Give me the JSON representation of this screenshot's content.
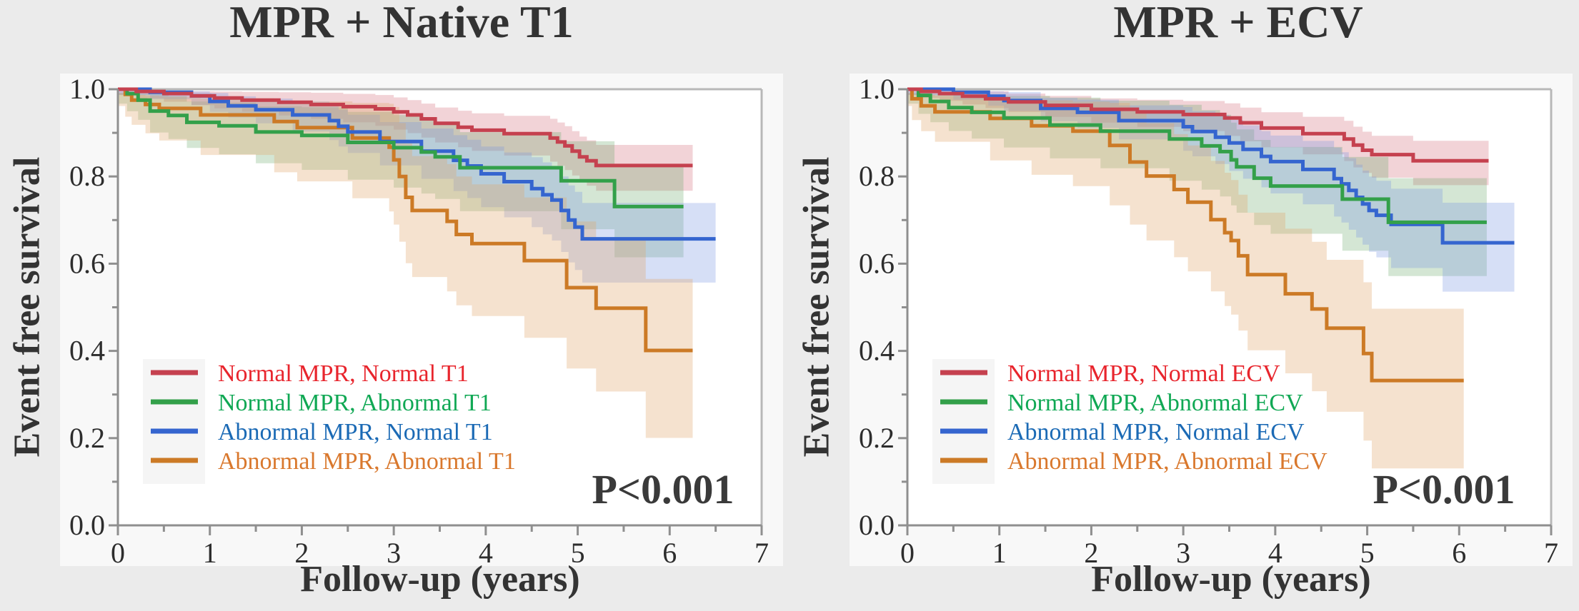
{
  "page": {
    "background": "#ebebeb",
    "figure_background": "#f8f8f8",
    "plot_background": "#ffffff"
  },
  "chart_data": [
    {
      "type": "line",
      "subtype": "kaplan-meier-step",
      "title": "MPR + Native T1",
      "xlabel": "Follow-up (years)",
      "ylabel": "Event free survival",
      "p_value": "P<0.001",
      "xlim": [
        0,
        7
      ],
      "ylim": [
        0.0,
        1.0
      ],
      "xticks": [
        0,
        1,
        2,
        3,
        4,
        5,
        6,
        7
      ],
      "ytick_labels": [
        "0.0",
        "0.2",
        "0.4",
        "0.6",
        "0.8",
        "1.0"
      ],
      "ytick_values": [
        0.0,
        0.2,
        0.4,
        0.6,
        0.8,
        1.0
      ],
      "grid": false,
      "legend_position": "lower left",
      "series": [
        {
          "name": "Normal MPR, Normal T1",
          "line_color": "#c5414f",
          "label_color": "#e8252d",
          "band_color": "rgba(205,80,95,0.25)",
          "band_halfwidth_start": 0.012,
          "band_halfwidth_end": 0.06,
          "band_growth_exponent": 0.9,
          "end_time": 6.25,
          "steps": [
            [
              0,
              1.0
            ],
            [
              0.2,
              0.995
            ],
            [
              0.5,
              0.99
            ],
            [
              0.8,
              0.985
            ],
            [
              1.05,
              0.98
            ],
            [
              1.35,
              0.975
            ],
            [
              1.75,
              0.97
            ],
            [
              2.1,
              0.965
            ],
            [
              2.45,
              0.96
            ],
            [
              2.8,
              0.955
            ],
            [
              3.0,
              0.948
            ],
            [
              3.15,
              0.941
            ],
            [
              3.3,
              0.932
            ],
            [
              3.45,
              0.922
            ],
            [
              3.7,
              0.913
            ],
            [
              3.85,
              0.906
            ],
            [
              4.2,
              0.898
            ],
            [
              4.7,
              0.888
            ],
            [
              4.78,
              0.879
            ],
            [
              4.86,
              0.87
            ],
            [
              4.94,
              0.858
            ],
            [
              5.02,
              0.845
            ],
            [
              5.1,
              0.836
            ],
            [
              5.2,
              0.825
            ]
          ]
        },
        {
          "name": "Normal MPR, Abnormal T1",
          "line_color": "#33a04a",
          "label_color": "#10a854",
          "band_color": "rgba(100,165,100,0.28)",
          "band_halfwidth_start": 0.03,
          "band_halfwidth_end": 0.112,
          "band_growth_exponent": 0.6,
          "end_time": 6.15,
          "steps": [
            [
              0,
              1.0
            ],
            [
              0.1,
              0.99
            ],
            [
              0.22,
              0.975
            ],
            [
              0.35,
              0.95
            ],
            [
              0.55,
              0.94
            ],
            [
              0.75,
              0.924
            ],
            [
              1.1,
              0.916
            ],
            [
              1.5,
              0.902
            ],
            [
              2.0,
              0.894
            ],
            [
              2.5,
              0.878
            ],
            [
              3.0,
              0.866
            ],
            [
              3.3,
              0.856
            ],
            [
              3.45,
              0.845
            ],
            [
              3.72,
              0.82
            ],
            [
              4.82,
              0.79
            ],
            [
              5.4,
              0.731
            ]
          ]
        },
        {
          "name": "Abnormal MPR, Normal T1",
          "line_color": "#3565cf",
          "label_color": "#1b6ab5",
          "band_color": "rgba(120,150,225,0.30)",
          "band_halfwidth_start": 0.012,
          "band_halfwidth_end": 0.122,
          "band_growth_exponent": 1.3,
          "end_time": 6.5,
          "steps": [
            [
              0,
              1.0
            ],
            [
              0.35,
              0.993
            ],
            [
              0.8,
              0.985
            ],
            [
              1.0,
              0.972
            ],
            [
              1.2,
              0.962
            ],
            [
              1.5,
              0.953
            ],
            [
              1.9,
              0.941
            ],
            [
              2.3,
              0.928
            ],
            [
              2.4,
              0.915
            ],
            [
              2.5,
              0.902
            ],
            [
              2.85,
              0.88
            ],
            [
              3.3,
              0.858
            ],
            [
              3.65,
              0.837
            ],
            [
              3.8,
              0.824
            ],
            [
              3.95,
              0.806
            ],
            [
              4.2,
              0.788
            ],
            [
              4.5,
              0.772
            ],
            [
              4.62,
              0.758
            ],
            [
              4.72,
              0.746
            ],
            [
              4.82,
              0.722
            ],
            [
              4.9,
              0.7
            ],
            [
              4.97,
              0.684
            ],
            [
              5.05,
              0.657
            ]
          ]
        },
        {
          "name": "Abnormal MPR, Abnormal T1",
          "line_color": "#cc7a26",
          "label_color": "#d9782d",
          "band_color": "rgba(225,165,105,0.32)",
          "band_halfwidth_start": 0.035,
          "band_halfwidth_end": 0.19,
          "band_growth_exponent": 0.6,
          "end_time": 6.25,
          "steps": [
            [
              0,
              1.0
            ],
            [
              0.08,
              0.988
            ],
            [
              0.15,
              0.975
            ],
            [
              0.3,
              0.965
            ],
            [
              0.45,
              0.956
            ],
            [
              0.9,
              0.941
            ],
            [
              1.7,
              0.926
            ],
            [
              1.95,
              0.912
            ],
            [
              2.55,
              0.888
            ],
            [
              2.95,
              0.867
            ],
            [
              3.0,
              0.838
            ],
            [
              3.06,
              0.8
            ],
            [
              3.13,
              0.752
            ],
            [
              3.2,
              0.722
            ],
            [
              3.58,
              0.697
            ],
            [
              3.68,
              0.667
            ],
            [
              3.85,
              0.646
            ],
            [
              4.42,
              0.607
            ],
            [
              4.88,
              0.545
            ],
            [
              5.2,
              0.498
            ],
            [
              5.74,
              0.401
            ]
          ]
        }
      ]
    },
    {
      "type": "line",
      "subtype": "kaplan-meier-step",
      "title": "MPR + ECV",
      "xlabel": "Follow-up (years)",
      "ylabel": "Event free survival",
      "p_value": "P<0.001",
      "xlim": [
        0,
        7
      ],
      "ylim": [
        0.0,
        1.0
      ],
      "xticks": [
        0,
        1,
        2,
        3,
        4,
        5,
        6,
        7
      ],
      "ytick_labels": [
        "0.0",
        "0.2",
        "0.4",
        "0.6",
        "0.8",
        "1.0"
      ],
      "ytick_values": [
        0.0,
        0.2,
        0.4,
        0.6,
        0.8,
        1.0
      ],
      "grid": false,
      "legend_position": "lower left",
      "series": [
        {
          "name": "Normal MPR, Normal ECV",
          "line_color": "#c5414f",
          "label_color": "#e8252d",
          "band_color": "rgba(205,80,95,0.25)",
          "band_halfwidth_start": 0.012,
          "band_halfwidth_end": 0.056,
          "band_growth_exponent": 0.9,
          "end_time": 6.32,
          "steps": [
            [
              0,
              1.0
            ],
            [
              0.15,
              0.995
            ],
            [
              0.35,
              0.99
            ],
            [
              0.6,
              0.984
            ],
            [
              0.85,
              0.978
            ],
            [
              1.1,
              0.971
            ],
            [
              1.5,
              0.963
            ],
            [
              2.0,
              0.954
            ],
            [
              2.5,
              0.948
            ],
            [
              3.0,
              0.942
            ],
            [
              3.45,
              0.934
            ],
            [
              3.62,
              0.923
            ],
            [
              3.85,
              0.911
            ],
            [
              4.3,
              0.898
            ],
            [
              4.75,
              0.886
            ],
            [
              4.85,
              0.872
            ],
            [
              4.95,
              0.86
            ],
            [
              5.05,
              0.85
            ],
            [
              5.5,
              0.836
            ]
          ]
        },
        {
          "name": "Normal MPR, Abnormal ECV",
          "line_color": "#33a04a",
          "label_color": "#10a854",
          "band_color": "rgba(100,165,100,0.28)",
          "band_halfwidth_start": 0.03,
          "band_halfwidth_end": 0.122,
          "band_growth_exponent": 0.6,
          "end_time": 6.3,
          "steps": [
            [
              0,
              1.0
            ],
            [
              0.12,
              0.986
            ],
            [
              0.25,
              0.972
            ],
            [
              0.45,
              0.958
            ],
            [
              0.7,
              0.947
            ],
            [
              1.05,
              0.934
            ],
            [
              1.55,
              0.918
            ],
            [
              2.1,
              0.904
            ],
            [
              2.85,
              0.886
            ],
            [
              3.2,
              0.87
            ],
            [
              3.4,
              0.857
            ],
            [
              3.52,
              0.838
            ],
            [
              3.58,
              0.822
            ],
            [
              3.77,
              0.796
            ],
            [
              3.95,
              0.778
            ],
            [
              4.73,
              0.748
            ],
            [
              5.23,
              0.695
            ]
          ]
        },
        {
          "name": "Abnormal MPR, Normal ECV",
          "line_color": "#3565cf",
          "label_color": "#1b6ab5",
          "band_color": "rgba(120,150,225,0.30)",
          "band_halfwidth_start": 0.012,
          "band_halfwidth_end": 0.118,
          "band_growth_exponent": 1.3,
          "end_time": 6.6,
          "steps": [
            [
              0,
              1.0
            ],
            [
              0.5,
              0.993
            ],
            [
              0.88,
              0.984
            ],
            [
              1.05,
              0.974
            ],
            [
              1.45,
              0.956
            ],
            [
              1.85,
              0.947
            ],
            [
              2.3,
              0.928
            ],
            [
              3.0,
              0.914
            ],
            [
              3.1,
              0.903
            ],
            [
              3.35,
              0.89
            ],
            [
              3.5,
              0.877
            ],
            [
              3.65,
              0.862
            ],
            [
              3.85,
              0.846
            ],
            [
              3.95,
              0.834
            ],
            [
              4.3,
              0.816
            ],
            [
              4.64,
              0.795
            ],
            [
              4.72,
              0.783
            ],
            [
              4.8,
              0.768
            ],
            [
              4.88,
              0.752
            ],
            [
              4.95,
              0.737
            ],
            [
              5.02,
              0.722
            ],
            [
              5.1,
              0.711
            ],
            [
              5.26,
              0.69
            ],
            [
              5.82,
              0.648
            ]
          ]
        },
        {
          "name": "Abnormal MPR, Abnormal ECV",
          "line_color": "#cc7a26",
          "label_color": "#d9782d",
          "band_color": "rgba(225,165,105,0.32)",
          "band_halfwidth_start": 0.035,
          "band_halfwidth_end": 0.2,
          "band_growth_exponent": 0.6,
          "end_time": 6.05,
          "steps": [
            [
              0,
              1.0
            ],
            [
              0.05,
              0.978
            ],
            [
              0.15,
              0.962
            ],
            [
              0.3,
              0.948
            ],
            [
              0.9,
              0.933
            ],
            [
              1.35,
              0.916
            ],
            [
              1.8,
              0.904
            ],
            [
              2.2,
              0.871
            ],
            [
              2.42,
              0.833
            ],
            [
              2.6,
              0.801
            ],
            [
              2.9,
              0.77
            ],
            [
              3.05,
              0.741
            ],
            [
              3.3,
              0.701
            ],
            [
              3.45,
              0.671
            ],
            [
              3.52,
              0.653
            ],
            [
              3.6,
              0.618
            ],
            [
              3.7,
              0.575
            ],
            [
              4.11,
              0.531
            ],
            [
              4.4,
              0.496
            ],
            [
              4.56,
              0.452
            ],
            [
              4.96,
              0.394
            ],
            [
              5.05,
              0.332
            ]
          ]
        }
      ]
    }
  ]
}
